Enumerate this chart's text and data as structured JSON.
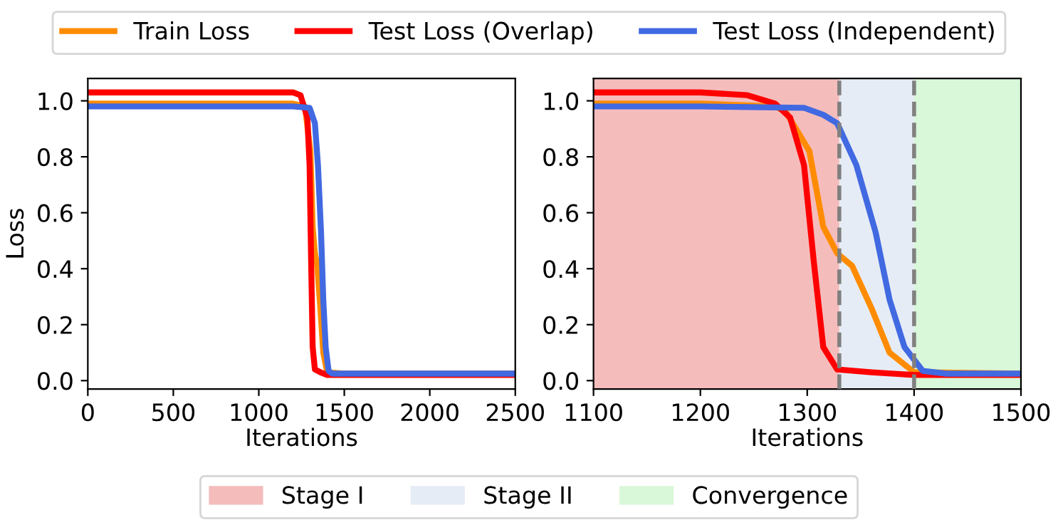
{
  "chart_data": [
    {
      "type": "line",
      "xlabel": "Iterations",
      "ylabel": "Loss",
      "xlim": [
        0,
        2500
      ],
      "ylim": [
        -0.03,
        1.08
      ],
      "xticks": [
        0,
        500,
        1000,
        1500,
        2000,
        2500
      ],
      "yticks": [
        {
          "value": 0,
          "label": "0.0"
        },
        {
          "value": 0.2,
          "label": "0.2"
        },
        {
          "value": 0.4,
          "label": "0.4"
        },
        {
          "value": 0.6,
          "label": "0.6"
        },
        {
          "value": 0.8,
          "label": "0.8"
        },
        {
          "value": 1,
          "label": "1.0"
        }
      ],
      "grid": false,
      "legend": "top",
      "line_style": "solid",
      "marker": "none",
      "series": [
        {
          "name": "Train Loss",
          "color": "#ff8c00",
          "x": [
            0,
            1200,
            1270,
            1302,
            1315,
            1328,
            1342,
            1360,
            1377,
            1400,
            1500,
            2500
          ],
          "values": [
            0.99,
            0.99,
            0.98,
            0.82,
            0.55,
            0.455,
            0.41,
            0.26,
            0.1,
            0.03,
            0.025,
            0.025
          ]
        },
        {
          "name": "Test Loss (Overlap)",
          "color": "#ff0000",
          "x": [
            0,
            1200,
            1244,
            1284,
            1297,
            1306,
            1315,
            1328,
            1360,
            1400,
            1500,
            2500
          ],
          "values": [
            1.03,
            1.03,
            1.02,
            0.94,
            0.77,
            0.43,
            0.12,
            0.04,
            0.03,
            0.02,
            0.02,
            0.02
          ]
        },
        {
          "name": "Test Loss (Independent)",
          "color": "#4169e1",
          "x": [
            0,
            1200,
            1297,
            1328,
            1346,
            1364,
            1377,
            1391,
            1408,
            1430,
            1500,
            2500
          ],
          "values": [
            0.98,
            0.98,
            0.975,
            0.92,
            0.77,
            0.53,
            0.29,
            0.12,
            0.035,
            0.025,
            0.025,
            0.025
          ]
        }
      ]
    },
    {
      "type": "line",
      "xlabel": "Iterations",
      "xlim": [
        1100,
        1500
      ],
      "ylim": [
        -0.03,
        1.08
      ],
      "xticks": [
        1100,
        1200,
        1300,
        1400,
        1500
      ],
      "yticks": [
        {
          "value": 0,
          "label": "0.0"
        },
        {
          "value": 0.2,
          "label": "0.2"
        },
        {
          "value": 0.4,
          "label": "0.4"
        },
        {
          "value": 0.6,
          "label": "0.6"
        },
        {
          "value": 0.8,
          "label": "0.8"
        },
        {
          "value": 1,
          "label": "1.0"
        }
      ],
      "grid": false,
      "legend": "bottom",
      "line_style": "solid",
      "marker": "none",
      "bands": [
        {
          "axis": "x",
          "from": 1100,
          "to": 1330,
          "label": "Stage I",
          "color": "#f5bcbc"
        },
        {
          "axis": "x",
          "from": 1330,
          "to": 1400,
          "label": "Stage II",
          "color": "#e6ecf5"
        },
        {
          "axis": "x",
          "from": 1400,
          "to": 1500,
          "label": "Convergence",
          "color": "#d9f7d9"
        }
      ],
      "ref_lines": [
        {
          "axis": "x",
          "value": 1330,
          "color": "#808080",
          "line_style": "dashed"
        },
        {
          "axis": "x",
          "value": 1400,
          "color": "#808080",
          "line_style": "dashed"
        }
      ],
      "series": [
        {
          "color": "#ff8c00",
          "x": [
            1100,
            1200,
            1270,
            1280,
            1302,
            1315,
            1328,
            1342,
            1360,
            1377,
            1400,
            1500
          ],
          "values": [
            0.99,
            0.99,
            0.98,
            0.96,
            0.82,
            0.55,
            0.455,
            0.41,
            0.26,
            0.1,
            0.03,
            0.025
          ]
        },
        {
          "color": "#ff0000",
          "x": [
            1100,
            1200,
            1244,
            1270,
            1284,
            1297,
            1306,
            1315,
            1328,
            1360,
            1400,
            1500
          ],
          "values": [
            1.03,
            1.03,
            1.02,
            0.99,
            0.94,
            0.77,
            0.43,
            0.12,
            0.04,
            0.03,
            0.02,
            0.02
          ]
        },
        {
          "color": "#4169e1",
          "x": [
            1100,
            1200,
            1297,
            1315,
            1328,
            1346,
            1364,
            1377,
            1391,
            1408,
            1430,
            1500
          ],
          "values": [
            0.98,
            0.98,
            0.975,
            0.95,
            0.92,
            0.77,
            0.53,
            0.29,
            0.12,
            0.035,
            0.025,
            0.025
          ]
        }
      ]
    }
  ]
}
